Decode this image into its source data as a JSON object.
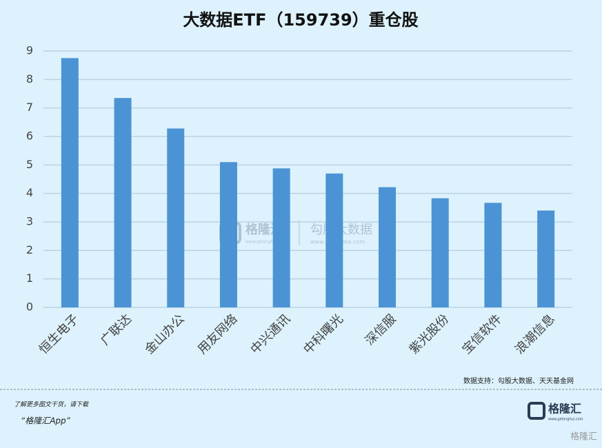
{
  "chart_data": {
    "type": "bar",
    "title": "大数据ETF（159739）重仓股",
    "categories": [
      "恒生电子",
      "广联达",
      "金山办公",
      "用友网络",
      "中兴通讯",
      "中科曙光",
      "深信服",
      "紫光股份",
      "宝信软件",
      "浪潮信息"
    ],
    "values": [
      8.75,
      7.35,
      6.28,
      5.1,
      4.88,
      4.7,
      4.22,
      3.83,
      3.67,
      3.4
    ],
    "color": "#4b93d4",
    "ylim": [
      0,
      9
    ],
    "yticks": [
      0,
      1,
      2,
      3,
      4,
      5,
      6,
      7,
      8,
      9
    ],
    "grid": true,
    "source": "数据支持：勾股大数据、天天基金网"
  },
  "watermark": {
    "brand": "格隆汇",
    "brand_url": "www.gelonghui.com",
    "partner": "勾股大数据",
    "partner_url": "www.gogudata.com"
  },
  "footer": {
    "note": "了解更多图文干货，请下载",
    "app": "“格隆汇App”",
    "logo": "格隆汇",
    "logo_url": "www.gelonghui.com",
    "corner": "格隆汇"
  }
}
